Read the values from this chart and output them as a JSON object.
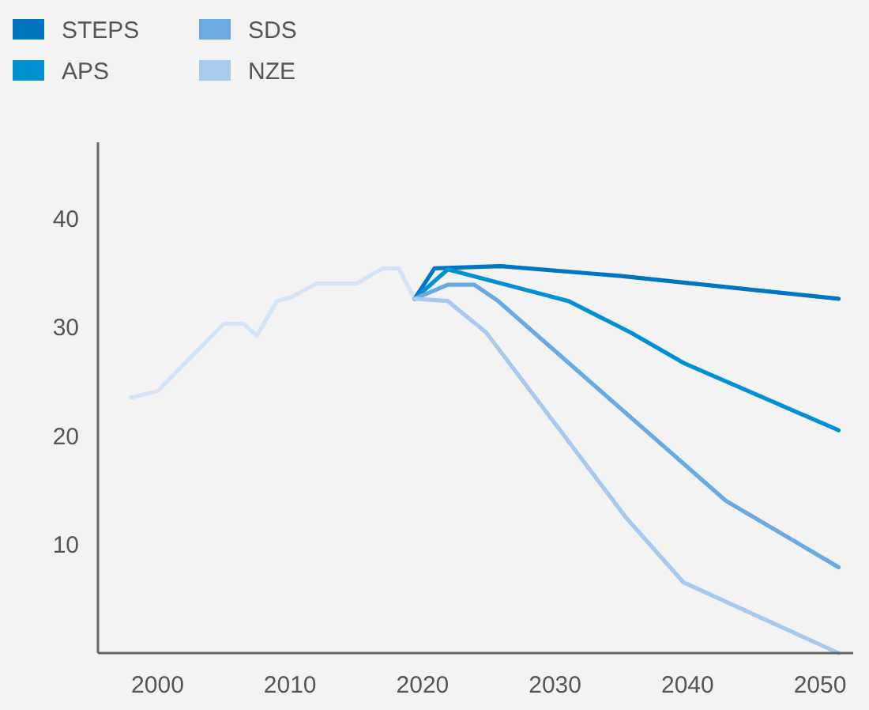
{
  "chart_data": {
    "type": "line",
    "legend": "top left",
    "xlim": [
      1995.5,
      2052.5
    ],
    "xticks": [
      2000,
      2010,
      2020,
      2030,
      2040,
      2050
    ],
    "ylim": [
      0,
      47
    ],
    "yticks": [
      10,
      20,
      30,
      40
    ],
    "series": [
      {
        "color": "#d4e4f6",
        "x": [
          1998,
          2000,
          2005,
          2006.5,
          2007.5,
          2009,
          2010,
          2012,
          2015,
          2017,
          2018.2,
          2019.4
        ],
        "values": [
          23.5,
          24.1,
          30.3,
          30.3,
          29.2,
          32.4,
          32.7,
          34,
          34,
          35.4,
          35.4,
          32.6
        ]
      },
      {
        "name": "STEPS",
        "color": "#0075c2",
        "x": [
          2019.4,
          2020.9,
          2025.9,
          2035,
          2051.4
        ],
        "values": [
          32.6,
          35.4,
          35.6,
          34.7,
          32.6
        ]
      },
      {
        "name": "APS",
        "color": "#0091d5",
        "x": [
          2019.4,
          2021.9,
          2031,
          2035.7,
          2039.7,
          2051.4
        ],
        "values": [
          32.6,
          35.3,
          32.4,
          29.5,
          26.7,
          20.5
        ]
      },
      {
        "name": "SDS",
        "color": "#6aaae3",
        "x": [
          2019.4,
          2021.9,
          2023.9,
          2025.7,
          2042.9,
          2051.4
        ],
        "values": [
          32.6,
          33.9,
          33.9,
          32.4,
          14,
          7.9
        ]
      },
      {
        "name": "NZE",
        "color": "#a7c9ee",
        "x": [
          2019.4,
          2021.9,
          2024.8,
          2035.4,
          2039.7,
          2051.4
        ],
        "values": [
          32.6,
          32.4,
          29.5,
          12.4,
          6.5,
          0
        ]
      }
    ]
  }
}
